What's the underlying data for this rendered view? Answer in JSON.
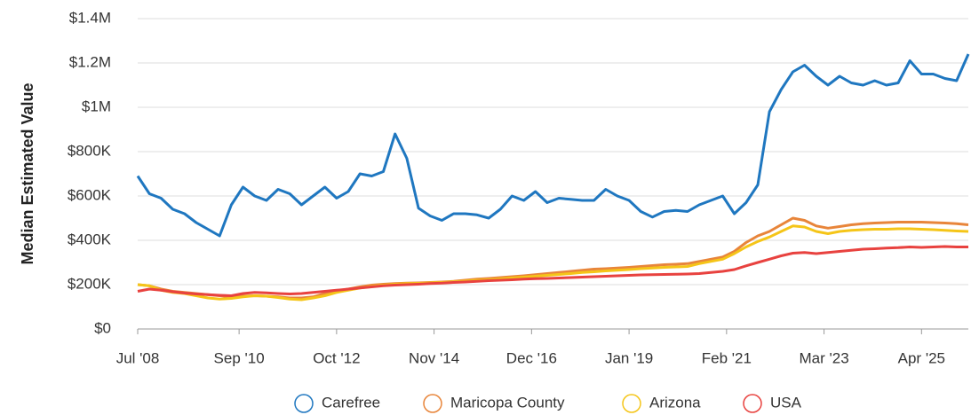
{
  "chart_data": {
    "type": "line",
    "y_label": "Median Estimated Value",
    "x": [
      "2008-07",
      "2008-10",
      "2009-01",
      "2009-04",
      "2009-07",
      "2009-10",
      "2010-01",
      "2010-04",
      "2010-07",
      "2010-10",
      "2011-01",
      "2011-04",
      "2011-07",
      "2011-10",
      "2012-01",
      "2012-04",
      "2012-07",
      "2012-10",
      "2013-01",
      "2013-04",
      "2013-07",
      "2013-10",
      "2014-01",
      "2014-04",
      "2014-07",
      "2014-10",
      "2015-01",
      "2015-04",
      "2015-07",
      "2015-10",
      "2016-01",
      "2016-04",
      "2016-07",
      "2016-10",
      "2017-01",
      "2017-04",
      "2017-07",
      "2017-10",
      "2018-01",
      "2018-04",
      "2018-07",
      "2018-10",
      "2019-01",
      "2019-04",
      "2019-07",
      "2019-10",
      "2020-01",
      "2020-04",
      "2020-07",
      "2020-10",
      "2021-01",
      "2021-04",
      "2021-07",
      "2021-10",
      "2022-01",
      "2022-04",
      "2022-07",
      "2022-10",
      "2023-01",
      "2023-04",
      "2023-07",
      "2023-10",
      "2024-01",
      "2024-04",
      "2024-07",
      "2024-10",
      "2025-01",
      "2025-04",
      "2025-07",
      "2025-10",
      "2026-01",
      "2026-04"
    ],
    "series": [
      {
        "name": "Carefree",
        "color": "#1f77c0",
        "values": [
          690000,
          610000,
          590000,
          540000,
          520000,
          480000,
          450000,
          420000,
          560000,
          640000,
          600000,
          580000,
          630000,
          610000,
          560000,
          600000,
          640000,
          590000,
          620000,
          700000,
          690000,
          710000,
          880000,
          770000,
          545000,
          510000,
          490000,
          520000,
          520000,
          515000,
          500000,
          540000,
          600000,
          580000,
          620000,
          570000,
          590000,
          585000,
          580000,
          580000,
          630000,
          600000,
          580000,
          530000,
          505000,
          530000,
          535000,
          530000,
          560000,
          580000,
          600000,
          520000,
          570000,
          650000,
          980000,
          1080000,
          1160000,
          1190000,
          1140000,
          1100000,
          1140000,
          1110000,
          1100000,
          1120000,
          1100000,
          1110000,
          1210000,
          1150000,
          1150000,
          1130000,
          1120000,
          1240000
        ]
      },
      {
        "name": "Maricopa County",
        "color": "#e8853a",
        "values": [
          200000,
          195000,
          180000,
          170000,
          165000,
          160000,
          155000,
          150000,
          145000,
          148000,
          150000,
          148000,
          145000,
          140000,
          140000,
          145000,
          160000,
          170000,
          180000,
          190000,
          198000,
          202000,
          205000,
          207000,
          208000,
          210000,
          212000,
          215000,
          220000,
          225000,
          228000,
          232000,
          236000,
          240000,
          245000,
          250000,
          255000,
          260000,
          265000,
          270000,
          272000,
          275000,
          278000,
          282000,
          286000,
          290000,
          292000,
          295000,
          305000,
          315000,
          325000,
          350000,
          390000,
          420000,
          440000,
          470000,
          500000,
          490000,
          465000,
          455000,
          462000,
          470000,
          475000,
          478000,
          480000,
          482000,
          482000,
          482000,
          480000,
          478000,
          475000,
          470000
        ]
      },
      {
        "name": "Arizona",
        "color": "#f5c518",
        "values": [
          200000,
          195000,
          175000,
          165000,
          160000,
          150000,
          140000,
          135000,
          138000,
          145000,
          150000,
          148000,
          142000,
          135000,
          132000,
          140000,
          150000,
          165000,
          175000,
          185000,
          192000,
          198000,
          202000,
          205000,
          206000,
          208000,
          210000,
          213000,
          216000,
          220000,
          222000,
          226000,
          230000,
          234000,
          238000,
          242000,
          246000,
          250000,
          255000,
          258000,
          262000,
          265000,
          268000,
          272000,
          275000,
          278000,
          280000,
          282000,
          295000,
          305000,
          315000,
          340000,
          370000,
          395000,
          415000,
          440000,
          465000,
          460000,
          440000,
          430000,
          440000,
          445000,
          448000,
          450000,
          450000,
          452000,
          452000,
          450000,
          448000,
          445000,
          442000,
          440000
        ]
      },
      {
        "name": "USA",
        "color": "#e8423f",
        "values": [
          170000,
          180000,
          175000,
          168000,
          162000,
          158000,
          155000,
          152000,
          150000,
          160000,
          165000,
          163000,
          160000,
          158000,
          160000,
          165000,
          170000,
          175000,
          180000,
          185000,
          190000,
          195000,
          198000,
          200000,
          202000,
          205000,
          207000,
          210000,
          212000,
          215000,
          218000,
          220000,
          222000,
          225000,
          227000,
          228000,
          230000,
          232000,
          234000,
          236000,
          238000,
          240000,
          242000,
          244000,
          245000,
          246000,
          247000,
          248000,
          250000,
          255000,
          260000,
          268000,
          285000,
          300000,
          315000,
          330000,
          342000,
          345000,
          340000,
          345000,
          350000,
          355000,
          360000,
          362000,
          365000,
          367000,
          370000,
          368000,
          370000,
          372000,
          370000,
          370000
        ]
      }
    ],
    "xlim": [
      "2008-07",
      "2026-04"
    ],
    "xticks": [
      {
        "value": "2008-07",
        "label": "Jul '08"
      },
      {
        "value": "2010-09",
        "label": "Sep '10"
      },
      {
        "value": "2012-10",
        "label": "Oct '12"
      },
      {
        "value": "2014-11",
        "label": "Nov '14"
      },
      {
        "value": "2016-12",
        "label": "Dec '16"
      },
      {
        "value": "2019-01",
        "label": "Jan '19"
      },
      {
        "value": "2021-02",
        "label": "Feb '21"
      },
      {
        "value": "2023-03",
        "label": "Mar '23"
      },
      {
        "value": "2025-04",
        "label": "Apr '25"
      }
    ],
    "ylim": [
      0,
      1400000
    ],
    "yticks": [
      {
        "value": 0,
        "label": "$0"
      },
      {
        "value": 200000,
        "label": "$200K"
      },
      {
        "value": 400000,
        "label": "$400K"
      },
      {
        "value": 600000,
        "label": "$600K"
      },
      {
        "value": 800000,
        "label": "$800K"
      },
      {
        "value": 1000000,
        "label": "$1M"
      },
      {
        "value": 1200000,
        "label": "$1.2M"
      },
      {
        "value": 1400000,
        "label": "$1.4M"
      }
    ],
    "grid": true,
    "legend": "bottom"
  }
}
